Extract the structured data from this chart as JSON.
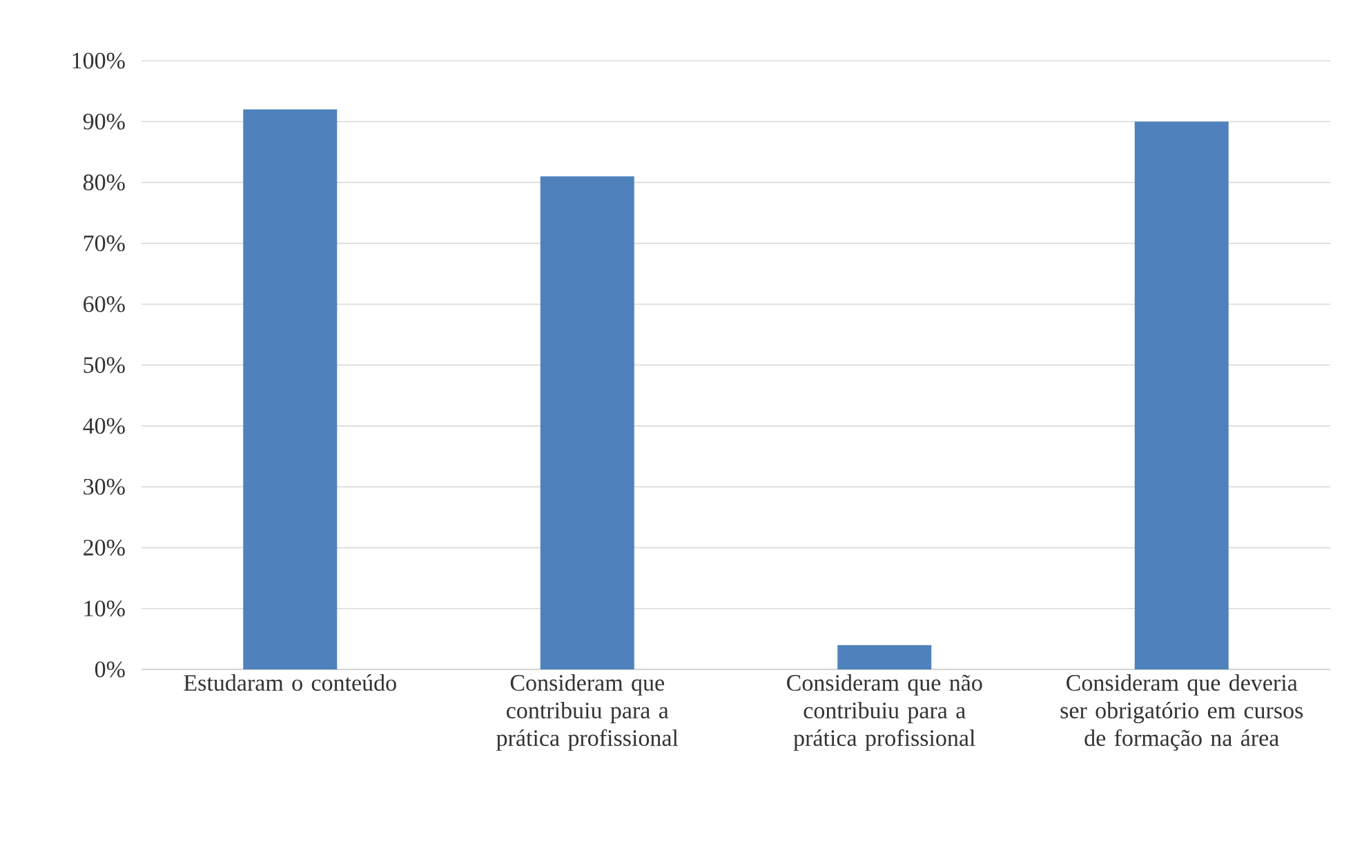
{
  "chart_data": {
    "type": "bar",
    "categories": [
      "Estudaram o conteúdo",
      "Consideram que contribuiu para a prática profissional",
      "Consideram que não contribuiu para a prática profissional",
      "Consideram que deveria ser obrigatório em cursos de formação na área"
    ],
    "values": [
      92,
      81,
      4,
      90
    ],
    "color": "#4f81bd",
    "ylim": [
      0,
      100
    ],
    "yticks": [
      {
        "value": 0,
        "label": "0%"
      },
      {
        "value": 10,
        "label": "10%"
      },
      {
        "value": 20,
        "label": "20%"
      },
      {
        "value": 30,
        "label": "30%"
      },
      {
        "value": 40,
        "label": "40%"
      },
      {
        "value": 50,
        "label": "50%"
      },
      {
        "value": 60,
        "label": "60%"
      },
      {
        "value": 70,
        "label": "70%"
      },
      {
        "value": 80,
        "label": "80%"
      },
      {
        "value": 90,
        "label": "90%"
      },
      {
        "value": 100,
        "label": "100%"
      }
    ],
    "grid": "y"
  }
}
